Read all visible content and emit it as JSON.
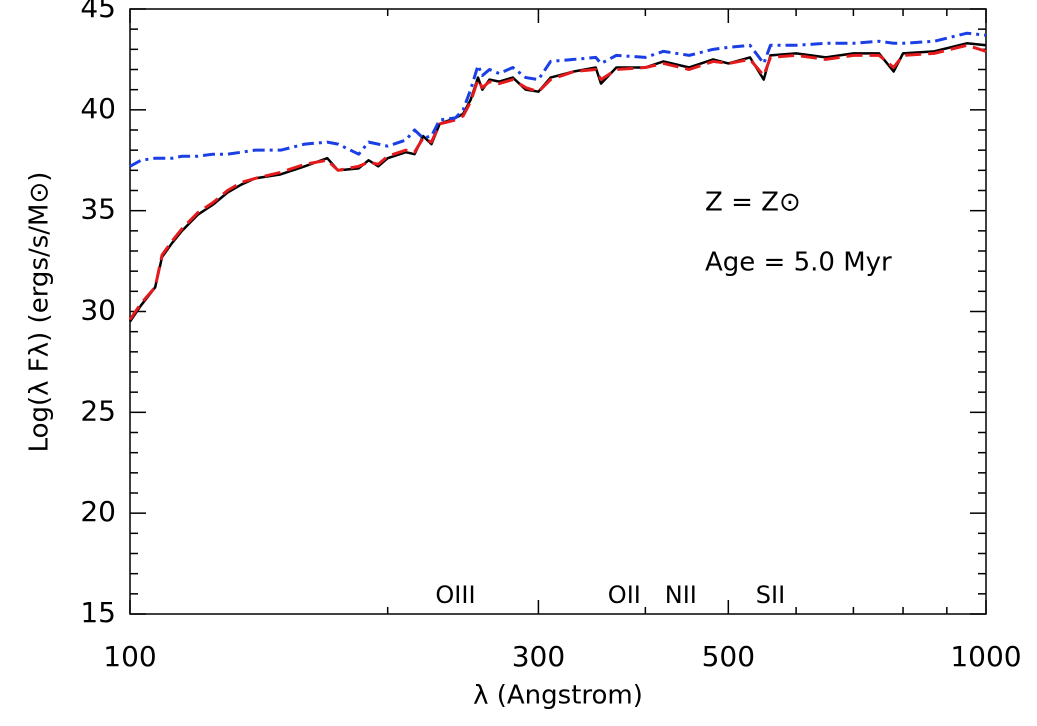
{
  "chart_data": {
    "type": "line",
    "xlabel": "λ (Angstrom)",
    "ylabel": "Log(λ Fλ) (ergs/s/M⊙)",
    "annotations": [
      "Z = Z⊙",
      "Age = 5.0 Myr"
    ],
    "line_labels": [
      {
        "text": "OIII",
        "x": 240
      },
      {
        "text": "OII",
        "x": 378
      },
      {
        "text": "NII",
        "x": 440
      },
      {
        "text": "SII",
        "x": 560
      }
    ],
    "xscale": "log",
    "xlim": [
      100,
      1000
    ],
    "xticks": [
      100,
      300,
      500,
      1000
    ],
    "xticks_minor": [
      200,
      400,
      600,
      700,
      800,
      900
    ],
    "ylim": [
      15,
      45
    ],
    "yticks": [
      15,
      20,
      25,
      30,
      35,
      40,
      45
    ],
    "yticks_minor": [
      16,
      17,
      18,
      19,
      21,
      22,
      23,
      24,
      26,
      27,
      28,
      29,
      31,
      32,
      33,
      34,
      36,
      37,
      38,
      39,
      41,
      42,
      43,
      44
    ],
    "x": [
      100,
      103,
      107,
      109,
      112,
      115,
      120,
      125,
      130,
      135,
      140,
      150,
      160,
      170,
      175,
      185,
      190,
      195,
      200,
      210,
      215,
      220,
      225,
      230,
      240,
      245,
      250,
      255,
      258,
      263,
      270,
      280,
      290,
      300,
      310,
      330,
      350,
      355,
      370,
      400,
      420,
      450,
      480,
      500,
      530,
      550,
      560,
      600,
      650,
      700,
      750,
      780,
      800,
      870,
      950,
      1000
    ],
    "series": [
      {
        "color": "#000000",
        "style": "solid",
        "values": [
          29.5,
          30.3,
          31.2,
          32.7,
          33.4,
          34.0,
          34.8,
          35.3,
          35.9,
          36.3,
          36.6,
          36.8,
          37.2,
          37.6,
          37.0,
          37.1,
          37.5,
          37.2,
          37.6,
          37.9,
          37.8,
          38.7,
          38.3,
          39.3,
          39.6,
          39.8,
          40.5,
          41.6,
          41.0,
          41.5,
          41.4,
          41.6,
          41.0,
          40.9,
          41.6,
          41.9,
          42.1,
          41.3,
          42.1,
          42.1,
          42.4,
          42.1,
          42.5,
          42.3,
          42.6,
          41.5,
          42.7,
          42.8,
          42.6,
          42.8,
          42.8,
          41.9,
          42.8,
          42.9,
          43.3,
          43.2
        ]
      },
      {
        "color": "#e41a1c",
        "style": "dashed",
        "values": [
          29.6,
          30.4,
          31.2,
          32.8,
          33.5,
          34.1,
          34.9,
          35.4,
          36.0,
          36.4,
          36.6,
          36.9,
          37.3,
          37.5,
          37.0,
          37.2,
          37.4,
          37.3,
          37.7,
          38.0,
          37.9,
          38.6,
          38.4,
          39.3,
          39.5,
          39.7,
          40.4,
          41.5,
          41.1,
          41.4,
          41.3,
          41.5,
          41.1,
          40.9,
          41.5,
          41.9,
          42.0,
          41.5,
          42.0,
          42.1,
          42.3,
          42.0,
          42.4,
          42.3,
          42.5,
          41.7,
          42.6,
          42.7,
          42.5,
          42.7,
          42.7,
          42.1,
          42.7,
          42.8,
          43.2,
          42.9
        ]
      },
      {
        "color": "#1a3fe6",
        "style": "dashdot",
        "values": [
          37.2,
          37.5,
          37.6,
          37.6,
          37.6,
          37.7,
          37.7,
          37.8,
          37.8,
          37.9,
          38.0,
          38.0,
          38.3,
          38.4,
          38.3,
          37.8,
          38.4,
          38.3,
          38.2,
          38.5,
          39.0,
          38.6,
          38.7,
          39.5,
          39.6,
          40.0,
          41.0,
          42.2,
          41.7,
          42.0,
          41.8,
          42.1,
          41.6,
          41.5,
          42.4,
          42.5,
          42.6,
          42.3,
          42.7,
          42.6,
          42.9,
          42.7,
          43.0,
          43.1,
          43.2,
          42.3,
          43.2,
          43.2,
          43.3,
          43.3,
          43.4,
          43.3,
          43.3,
          43.4,
          43.8,
          43.7
        ]
      }
    ]
  }
}
